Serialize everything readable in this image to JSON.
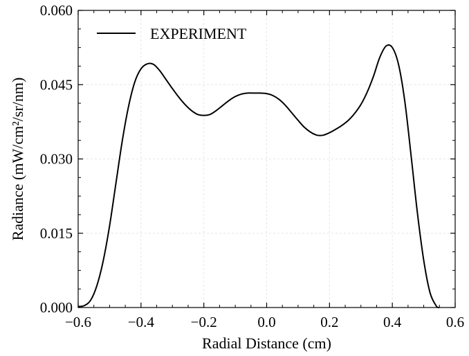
{
  "chart_data": {
    "type": "line",
    "title": "",
    "xlabel": "Radial Distance (cm)",
    "ylabel": "Radiance (mW/cm²/sr/nm)",
    "xlim": [
      -0.6,
      0.6
    ],
    "ylim": [
      0.0,
      0.06
    ],
    "xticks": [
      -0.6,
      -0.4,
      -0.2,
      0.0,
      0.2,
      0.4,
      0.6
    ],
    "xtick_labels": [
      "−0.6",
      "−0.4",
      "−0.2",
      "0.0",
      "0.2",
      "0.4",
      "0.6"
    ],
    "yticks": [
      0.0,
      0.015,
      0.03,
      0.045,
      0.06
    ],
    "ytick_labels": [
      "0.000",
      "0.015",
      "0.030",
      "0.045",
      "0.060"
    ],
    "grid": true,
    "legend_position": "top-left",
    "series": [
      {
        "name": "EXPERIMENT",
        "color": "#000000",
        "x": [
          -0.6,
          -0.58,
          -0.56,
          -0.54,
          -0.52,
          -0.5,
          -0.48,
          -0.46,
          -0.44,
          -0.42,
          -0.4,
          -0.38,
          -0.36,
          -0.34,
          -0.32,
          -0.3,
          -0.28,
          -0.26,
          -0.24,
          -0.22,
          -0.2,
          -0.18,
          -0.16,
          -0.14,
          -0.12,
          -0.1,
          -0.08,
          -0.06,
          -0.04,
          -0.02,
          0.0,
          0.02,
          0.04,
          0.06,
          0.08,
          0.1,
          0.12,
          0.14,
          0.16,
          0.18,
          0.2,
          0.22,
          0.24,
          0.26,
          0.28,
          0.3,
          0.32,
          0.34,
          0.36,
          0.38,
          0.4,
          0.42,
          0.44,
          0.46,
          0.48,
          0.5,
          0.52,
          0.54,
          0.55
        ],
        "y": [
          0.0002,
          0.0004,
          0.0015,
          0.0045,
          0.0095,
          0.0165,
          0.025,
          0.0335,
          0.0405,
          0.0455,
          0.0482,
          0.0492,
          0.0491,
          0.0478,
          0.046,
          0.0442,
          0.0425,
          0.041,
          0.0398,
          0.039,
          0.0388,
          0.039,
          0.0398,
          0.0408,
          0.0418,
          0.0426,
          0.0431,
          0.0433,
          0.0433,
          0.0433,
          0.0432,
          0.0428,
          0.042,
          0.0408,
          0.0393,
          0.0378,
          0.0364,
          0.0354,
          0.0348,
          0.0348,
          0.0353,
          0.036,
          0.0368,
          0.0378,
          0.0392,
          0.041,
          0.0435,
          0.0467,
          0.0505,
          0.0528,
          0.0525,
          0.049,
          0.0415,
          0.0305,
          0.019,
          0.0095,
          0.003,
          0.0003,
          0.0
        ]
      }
    ]
  }
}
